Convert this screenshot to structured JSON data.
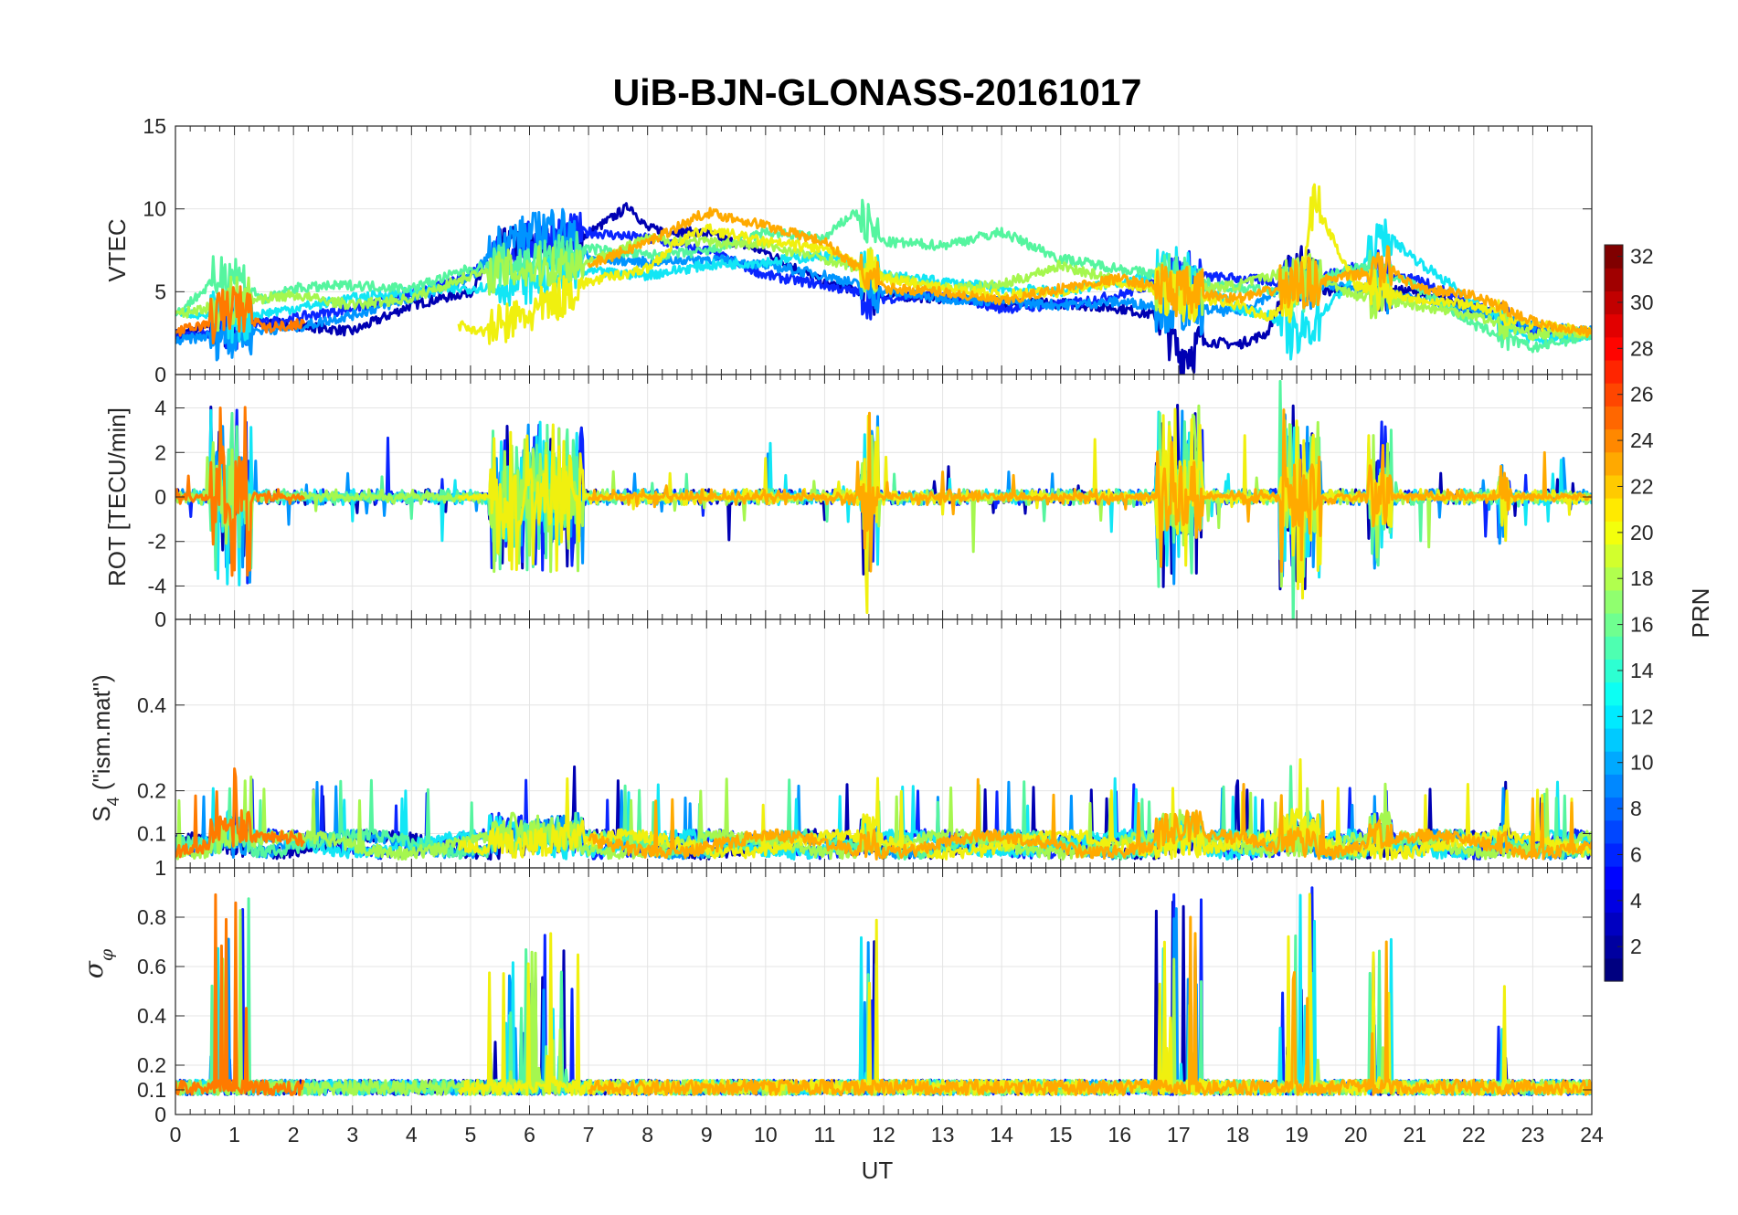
{
  "chart_data": {
    "type": "line",
    "title": "UiB-BJN-GLONASS-20161017",
    "x": {
      "label": "UT",
      "range": [
        0,
        24
      ],
      "ticks": [
        "0",
        "1",
        "2",
        "3",
        "4",
        "5",
        "6",
        "7",
        "8",
        "9",
        "10",
        "11",
        "12",
        "13",
        "14",
        "15",
        "16",
        "17",
        "18",
        "19",
        "20",
        "21",
        "22",
        "23",
        "24"
      ]
    },
    "grid": true,
    "panels": [
      {
        "id": "vtec",
        "ylabel": "VTEC",
        "ylim": [
          0,
          15
        ],
        "yticks": [
          0,
          5,
          10,
          15
        ],
        "yticklabels": [
          "0",
          "5",
          "10",
          "15"
        ]
      },
      {
        "id": "rot",
        "ylabel": "ROT [TECU/min]",
        "ylim": [
          -5.5,
          5.5
        ],
        "yticks": [
          -4,
          -2,
          0,
          2,
          4
        ],
        "yticklabels": [
          "-4",
          "-2",
          "0",
          "2",
          "4"
        ]
      },
      {
        "id": "s4",
        "ylabel_main": "S",
        "ylabel_sub": "4",
        "ylabel_rest": " (\"ism.mat\")",
        "ylim": [
          0.02,
          0.6
        ],
        "yticks": [
          0.1,
          0.2,
          0.4
        ],
        "yticklabels": [
          "0.1",
          "0.2",
          "0.4"
        ],
        "top_label": "0"
      },
      {
        "id": "sigma",
        "ylabel_main": "σ",
        "ylabel_sub": "φ",
        "ylim": [
          0,
          1
        ],
        "yticks": [
          0,
          0.1,
          0.2,
          0.4,
          0.6,
          0.8
        ],
        "yticklabels": [
          "0",
          "0.1",
          "0.2",
          "0.4",
          "0.6",
          "0.8"
        ],
        "top_label": "1"
      }
    ],
    "colorbar": {
      "label": "PRN",
      "range": [
        1,
        32
      ],
      "ticks": [
        2,
        4,
        6,
        8,
        10,
        12,
        14,
        16,
        18,
        20,
        22,
        24,
        26,
        28,
        30,
        32
      ],
      "ticklabels": [
        "2",
        "4",
        "6",
        "8",
        "10",
        "12",
        "14",
        "16",
        "18",
        "20",
        "22",
        "24",
        "26",
        "28",
        "30",
        "32"
      ],
      "colormap": "jet"
    },
    "series": [
      {
        "prn": 2,
        "color": "#0000b3",
        "vtec": [
          [
            0,
            2.4
          ],
          [
            1,
            3.2
          ],
          [
            2,
            3.0
          ],
          [
            3,
            2.6
          ],
          [
            4,
            4.2
          ],
          [
            5,
            5.0
          ],
          [
            5.5,
            7.5
          ],
          [
            6,
            8.0
          ],
          [
            6.5,
            7.5
          ],
          [
            7,
            8.5
          ],
          [
            7.7,
            10.2
          ],
          [
            8,
            8.8
          ],
          [
            9,
            8.5
          ],
          [
            10,
            7.4
          ],
          [
            11,
            5.5
          ],
          [
            12,
            4.8
          ],
          [
            13,
            4.6
          ],
          [
            14,
            4.4
          ],
          [
            15,
            4.3
          ],
          [
            16,
            4.0
          ],
          [
            16.7,
            3.5
          ],
          [
            17,
            1.2
          ],
          [
            17.5,
            2.0
          ],
          [
            18,
            1.8
          ],
          [
            18.5,
            2.5
          ],
          [
            19,
            7.0
          ],
          [
            19.5,
            5.0
          ],
          [
            20,
            5.2
          ],
          [
            21,
            5.0
          ],
          [
            22,
            4.0
          ],
          [
            23,
            2.8
          ],
          [
            24,
            2.5
          ]
        ]
      },
      {
        "prn": 5,
        "color": "#0a25ff",
        "vtec": [
          [
            0,
            2.2
          ],
          [
            1,
            2.8
          ],
          [
            2,
            3.4
          ],
          [
            3,
            4.0
          ],
          [
            4,
            4.8
          ],
          [
            5,
            6.2
          ],
          [
            6,
            8.0
          ],
          [
            7,
            8.6
          ],
          [
            8,
            8.2
          ],
          [
            9,
            7.5
          ],
          [
            10,
            6.0
          ],
          [
            11,
            5.4
          ],
          [
            12,
            4.6
          ],
          [
            13,
            4.8
          ],
          [
            14,
            4.0
          ],
          [
            15,
            4.2
          ],
          [
            16,
            4.8
          ],
          [
            17,
            6.0
          ],
          [
            18,
            5.8
          ],
          [
            19,
            5.5
          ],
          [
            20,
            6.5
          ],
          [
            21,
            5.8
          ],
          [
            22,
            4.2
          ],
          [
            23,
            2.6
          ],
          [
            24,
            2.5
          ]
        ]
      },
      {
        "prn": 9,
        "color": "#0094ff",
        "vtec": [
          [
            0,
            2.0
          ],
          [
            1,
            2.6
          ],
          [
            2,
            2.8
          ],
          [
            3,
            3.6
          ],
          [
            4,
            4.6
          ],
          [
            5,
            5.8
          ],
          [
            5.5,
            8.0
          ],
          [
            6,
            8.4
          ],
          [
            6.5,
            9.2
          ],
          [
            7,
            7.0
          ],
          [
            8,
            6.8
          ],
          [
            9,
            7.0
          ],
          [
            10,
            6.6
          ],
          [
            11,
            6.0
          ],
          [
            12,
            5.0
          ],
          [
            13,
            4.6
          ],
          [
            14,
            4.4
          ],
          [
            15,
            4.2
          ],
          [
            16,
            4.4
          ],
          [
            17,
            4.0
          ],
          [
            18,
            3.8
          ],
          [
            19,
            5.6
          ],
          [
            20,
            5.2
          ],
          [
            21,
            4.6
          ],
          [
            22,
            3.8
          ],
          [
            23,
            2.9
          ],
          [
            24,
            2.6
          ]
        ]
      },
      {
        "prn": 12,
        "color": "#12e6f5",
        "vtec": [
          [
            0,
            3.8
          ],
          [
            1,
            3.4
          ],
          [
            2,
            4.0
          ],
          [
            3,
            4.6
          ],
          [
            4,
            5.0
          ],
          [
            5,
            5.2
          ],
          [
            6,
            5.6
          ],
          [
            7,
            6.2
          ],
          [
            8,
            6.0
          ],
          [
            9,
            6.6
          ],
          [
            10,
            6.8
          ],
          [
            11,
            7.2
          ],
          [
            12,
            6.0
          ],
          [
            13,
            5.6
          ],
          [
            14,
            5.2
          ],
          [
            15,
            5.0
          ],
          [
            16,
            5.6
          ],
          [
            17,
            6.2
          ],
          [
            18,
            4.0
          ],
          [
            18.6,
            3.5
          ],
          [
            19,
            2.0
          ],
          [
            20,
            6.0
          ],
          [
            20.5,
            8.5
          ],
          [
            21,
            7.0
          ],
          [
            22,
            4.4
          ],
          [
            23,
            2.0
          ],
          [
            24,
            2.4
          ]
        ]
      },
      {
        "prn": 15,
        "color": "#55f59f",
        "vtec": [
          [
            0,
            3.6
          ],
          [
            0.9,
            6.4
          ],
          [
            1.5,
            4.5
          ],
          [
            2,
            5.2
          ],
          [
            3,
            5.4
          ],
          [
            4,
            5.2
          ],
          [
            5,
            6.4
          ],
          [
            6,
            6.8
          ],
          [
            7,
            7.6
          ],
          [
            8,
            7.2
          ],
          [
            9,
            7.4
          ],
          [
            10,
            8.6
          ],
          [
            11,
            8.2
          ],
          [
            11.5,
            9.8
          ],
          [
            12,
            8.0
          ],
          [
            13,
            7.8
          ],
          [
            14,
            8.6
          ],
          [
            15,
            7.0
          ],
          [
            16,
            6.4
          ],
          [
            17,
            5.8
          ],
          [
            18,
            5.2
          ],
          [
            19,
            5.0
          ],
          [
            20,
            6.6
          ],
          [
            21,
            5.4
          ],
          [
            22,
            3.0
          ],
          [
            23,
            1.6
          ],
          [
            24,
            2.4
          ]
        ]
      },
      {
        "prn": 17,
        "color": "#a5f74f",
        "vtec": [
          [
            0,
            3.6
          ],
          [
            1,
            4.4
          ],
          [
            2,
            4.8
          ],
          [
            3,
            4.2
          ],
          [
            4,
            4.6
          ],
          [
            5,
            6.0
          ],
          [
            6,
            6.4
          ],
          [
            7,
            6.8
          ],
          [
            8,
            8.2
          ],
          [
            9,
            8.0
          ],
          [
            10,
            7.8
          ],
          [
            11,
            7.0
          ],
          [
            12,
            6.0
          ],
          [
            13,
            5.2
          ],
          [
            14,
            5.4
          ],
          [
            15,
            6.6
          ],
          [
            16,
            5.6
          ],
          [
            17,
            5.0
          ],
          [
            18,
            5.4
          ],
          [
            19,
            6.4
          ],
          [
            20,
            4.8
          ],
          [
            21,
            4.2
          ],
          [
            22,
            3.6
          ],
          [
            23,
            2.4
          ],
          [
            24,
            2.6
          ]
        ]
      },
      {
        "prn": 20,
        "color": "#f0f00f",
        "vtec": [
          [
            4.8,
            3.0
          ],
          [
            5.2,
            2.6
          ],
          [
            6,
            3.6
          ],
          [
            7,
            5.6
          ],
          [
            8,
            6.4
          ],
          [
            8.5,
            8.0
          ],
          [
            9,
            8.8
          ],
          [
            10,
            8.0
          ],
          [
            11,
            7.6
          ],
          [
            12,
            5.8
          ],
          [
            13,
            5.2
          ],
          [
            14,
            4.8
          ],
          [
            15,
            5.0
          ],
          [
            16,
            5.6
          ],
          [
            17,
            4.8
          ],
          [
            18,
            4.2
          ],
          [
            18.5,
            3.5
          ],
          [
            19,
            4.6
          ],
          [
            19.3,
            10.4
          ],
          [
            20,
            5.4
          ],
          [
            21,
            4.6
          ],
          [
            22,
            4.2
          ],
          [
            23,
            3.0
          ],
          [
            24,
            2.6
          ]
        ]
      },
      {
        "prn": 22,
        "color": "#ffaa00",
        "vtec": [
          [
            7,
            6.6
          ],
          [
            8,
            8.0
          ],
          [
            9,
            9.8
          ],
          [
            10,
            9.0
          ],
          [
            11,
            8.0
          ],
          [
            12,
            5.2
          ],
          [
            13,
            5.0
          ],
          [
            14,
            4.4
          ],
          [
            15,
            5.2
          ],
          [
            16,
            5.8
          ],
          [
            17,
            5.0
          ],
          [
            18,
            4.6
          ],
          [
            19,
            5.4
          ],
          [
            20,
            6.0
          ],
          [
            20.6,
            6.5
          ],
          [
            21,
            5.2
          ],
          [
            22,
            4.8
          ],
          [
            23,
            3.2
          ],
          [
            24,
            2.5
          ]
        ]
      },
      {
        "prn": 24,
        "color": "#ff7a00",
        "vtec": [
          [
            0,
            2.6
          ],
          [
            0.5,
            3.0
          ],
          [
            1,
            4.2
          ],
          [
            1.5,
            2.8
          ],
          [
            2,
            3.0
          ],
          [
            2.2,
            3.2
          ]
        ]
      }
    ]
  }
}
